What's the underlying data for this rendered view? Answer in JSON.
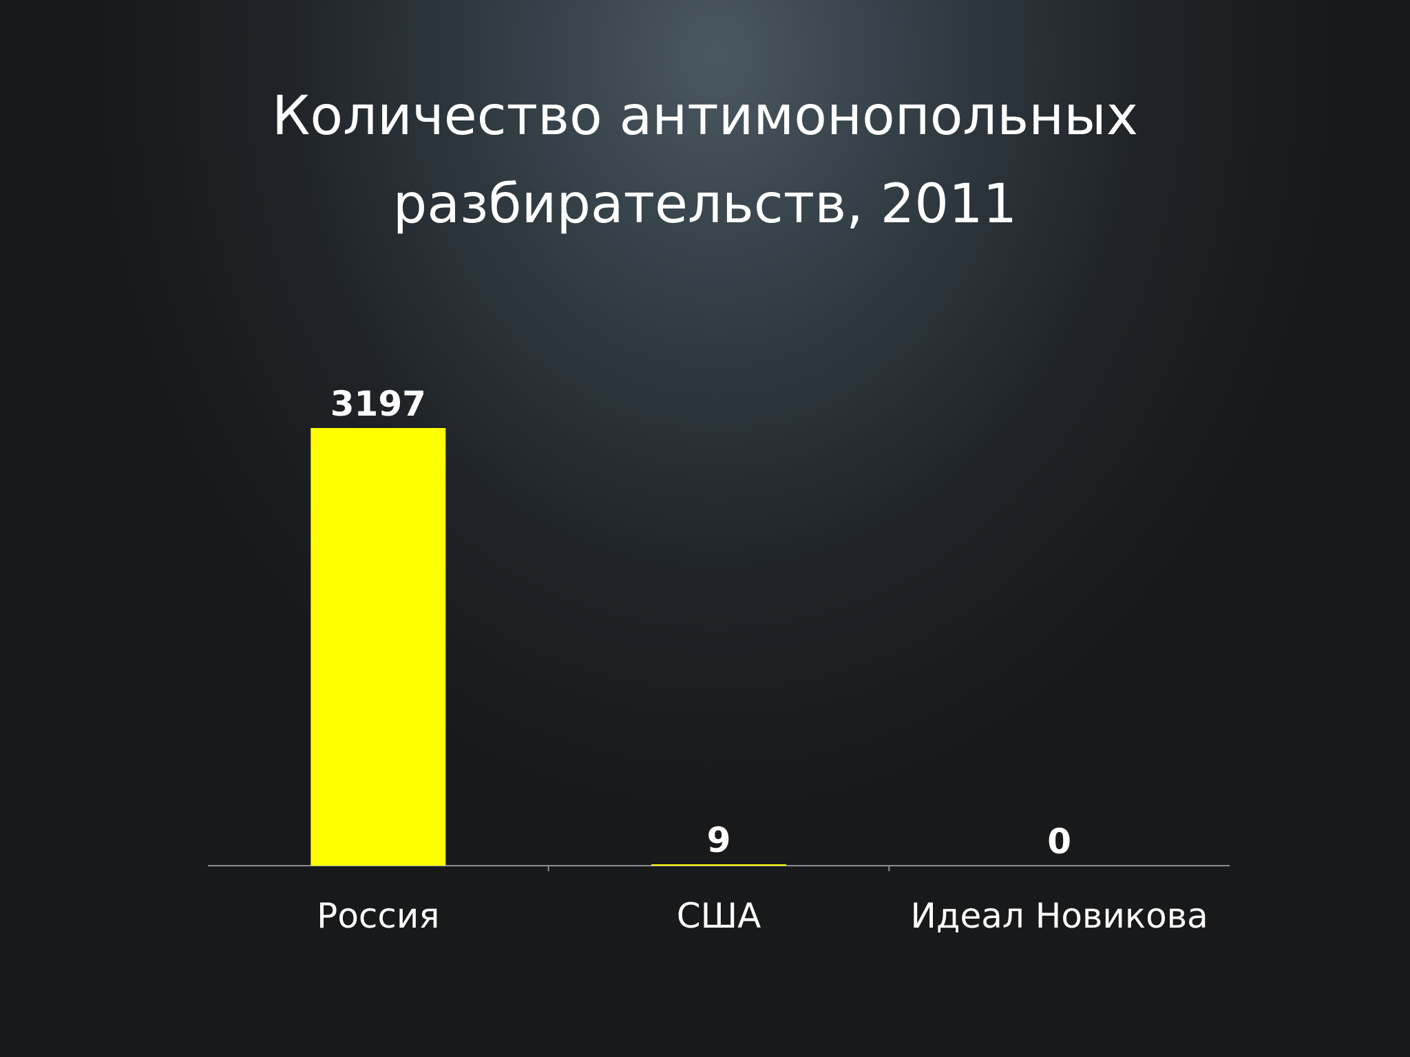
{
  "slide": {
    "title_line1": "Количество антимонопольных",
    "title_line2": "разбирательств, 2011"
  },
  "colors": {
    "bar": "#ffff00",
    "axis": "#8a8f93",
    "text": "#ffffff"
  },
  "chart_data": {
    "type": "bar",
    "title": "Количество антимонопольных разбирательств, 2011",
    "categories": [
      "Россия",
      "США",
      "Идеал Новикова"
    ],
    "values": [
      3197,
      9,
      0
    ],
    "value_labels": [
      "3197",
      "9",
      "0"
    ],
    "xlabel": "",
    "ylabel": "",
    "ylim": [
      0,
      3197
    ],
    "grid": false,
    "legend": "none"
  }
}
